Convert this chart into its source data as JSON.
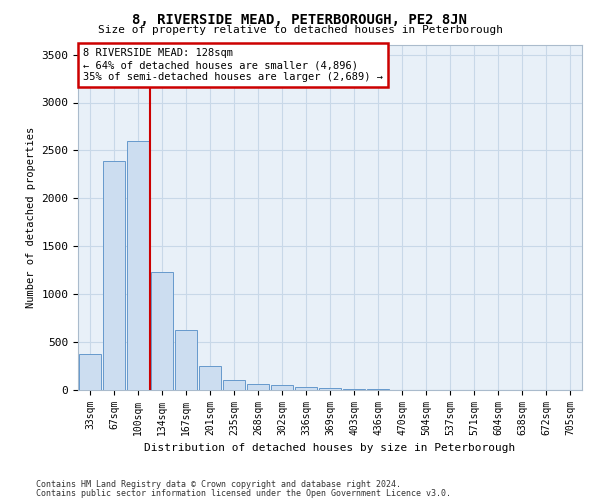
{
  "title": "8, RIVERSIDE MEAD, PETERBOROUGH, PE2 8JN",
  "subtitle": "Size of property relative to detached houses in Peterborough",
  "xlabel": "Distribution of detached houses by size in Peterborough",
  "ylabel": "Number of detached properties",
  "footnote1": "Contains HM Land Registry data © Crown copyright and database right 2024.",
  "footnote2": "Contains public sector information licensed under the Open Government Licence v3.0.",
  "bin_labels": [
    "33sqm",
    "67sqm",
    "100sqm",
    "134sqm",
    "167sqm",
    "201sqm",
    "235sqm",
    "268sqm",
    "302sqm",
    "336sqm",
    "369sqm",
    "403sqm",
    "436sqm",
    "470sqm",
    "504sqm",
    "537sqm",
    "571sqm",
    "604sqm",
    "638sqm",
    "672sqm",
    "705sqm"
  ],
  "bar_values": [
    375,
    2390,
    2600,
    1230,
    625,
    250,
    100,
    65,
    50,
    30,
    20,
    10,
    8,
    5,
    4,
    3,
    2,
    2,
    1,
    1,
    0
  ],
  "bar_color": "#ccddf0",
  "bar_edge_color": "#6699cc",
  "grid_color": "#c8d8e8",
  "bg_color": "#e8f0f8",
  "property_line_bin_index": 3,
  "annotation_text": "8 RIVERSIDE MEAD: 128sqm\n← 64% of detached houses are smaller (4,896)\n35% of semi-detached houses are larger (2,689) →",
  "annotation_box_color": "#cc0000",
  "ylim": [
    0,
    3600
  ],
  "yticks": [
    0,
    500,
    1000,
    1500,
    2000,
    2500,
    3000,
    3500
  ]
}
